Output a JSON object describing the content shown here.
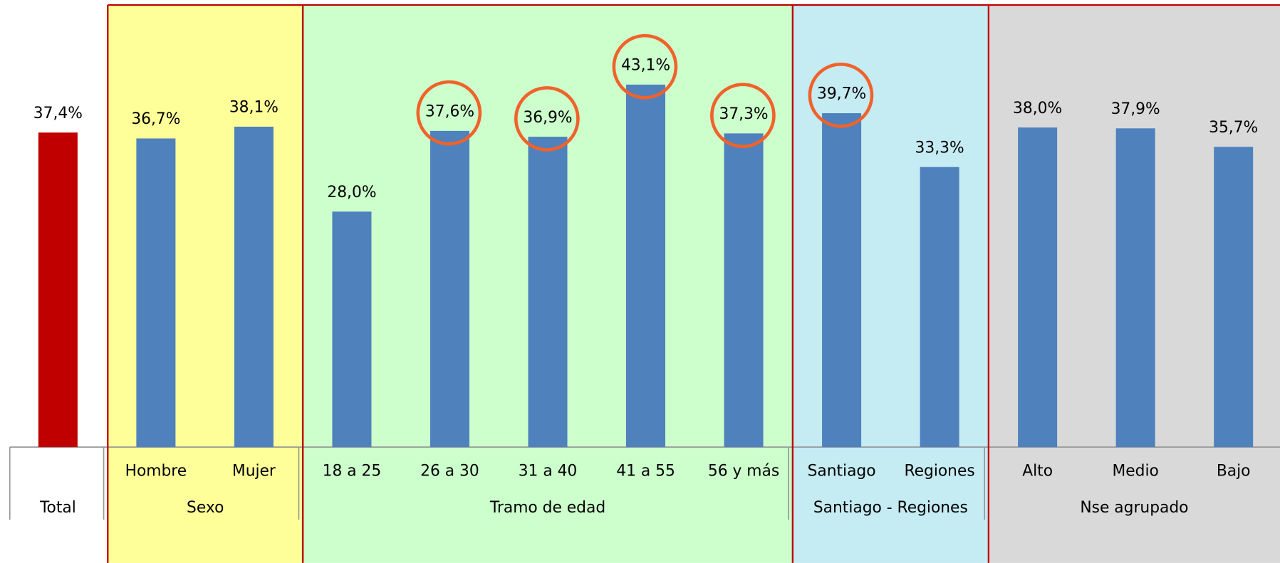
{
  "chart_data": {
    "type": "bar",
    "groups": [
      {
        "name": "Total",
        "background": "#ffffff",
        "bars": [
          {
            "category": null,
            "value": 37.4,
            "value_label": "37,4%",
            "color": "#c00000",
            "highlighted": false
          }
        ]
      },
      {
        "name": "Sexo",
        "background": "#ffff99",
        "bars": [
          {
            "category": "Hombre",
            "value": 36.7,
            "value_label": "36,7%",
            "color": "#4f81bd",
            "highlighted": false
          },
          {
            "category": "Mujer",
            "value": 38.1,
            "value_label": "38,1%",
            "color": "#4f81bd",
            "highlighted": false
          }
        ]
      },
      {
        "name": "Tramo de edad",
        "background": "#ccffcc",
        "bars": [
          {
            "category": "18 a 25",
            "value": 28.0,
            "value_label": "28,0%",
            "color": "#4f81bd",
            "highlighted": false
          },
          {
            "category": "26 a 30",
            "value": 37.6,
            "value_label": "37,6%",
            "color": "#4f81bd",
            "highlighted": true
          },
          {
            "category": "31 a 40",
            "value": 36.9,
            "value_label": "36,9%",
            "color": "#4f81bd",
            "highlighted": true
          },
          {
            "category": "41 a 55",
            "value": 43.1,
            "value_label": "43,1%",
            "color": "#4f81bd",
            "highlighted": true
          },
          {
            "category": "56 y más",
            "value": 37.3,
            "value_label": "37,3%",
            "color": "#4f81bd",
            "highlighted": true
          }
        ]
      },
      {
        "name": "Santiago - Regiones",
        "background": "#c5ebf3",
        "bars": [
          {
            "category": "Santiago",
            "value": 39.7,
            "value_label": "39,7%",
            "color": "#4f81bd",
            "highlighted": true
          },
          {
            "category": "Regiones",
            "value": 33.3,
            "value_label": "33,3%",
            "color": "#4f81bd",
            "highlighted": false
          }
        ]
      },
      {
        "name": "Nse agrupado",
        "background": "#d9d9d9",
        "bars": [
          {
            "category": "Alto",
            "value": 38.0,
            "value_label": "38,0%",
            "color": "#4f81bd",
            "highlighted": false
          },
          {
            "category": "Medio",
            "value": 37.9,
            "value_label": "37,9%",
            "color": "#4f81bd",
            "highlighted": false
          },
          {
            "category": "Bajo",
            "value": 35.7,
            "value_label": "35,7%",
            "color": "#4f81bd",
            "highlighted": false
          }
        ]
      }
    ]
  }
}
